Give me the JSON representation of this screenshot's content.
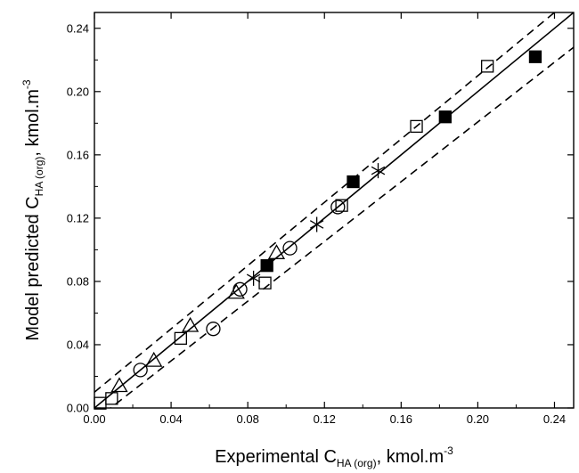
{
  "chart_data": {
    "type": "scatter",
    "title": "",
    "xlabel": {
      "main": "Experimental C",
      "sub": "HA (org)",
      "unit": ", kmol.m",
      "sup": "-3"
    },
    "ylabel": {
      "main": "Model predicted C",
      "sub": "HA (org)",
      "unit": ", kmol.m",
      "sup": "-3"
    },
    "xlim": [
      0,
      0.25
    ],
    "ylim": [
      0,
      0.25
    ],
    "xticks": [
      "0.00",
      "0.04",
      "0.08",
      "0.12",
      "0.16",
      "0.20",
      "0.24"
    ],
    "yticks": [
      "0.00",
      "0.04",
      "0.08",
      "0.12",
      "0.16",
      "0.20",
      "0.24"
    ],
    "grid": false,
    "legend": "none",
    "lines": [
      {
        "style": "solid",
        "x": [
          0.0,
          0.25
        ],
        "y": [
          0.0,
          0.25
        ]
      },
      {
        "style": "dashed",
        "x": [
          0.0,
          0.25
        ],
        "y": [
          0.01,
          0.26
        ]
      },
      {
        "style": "dashed",
        "x": [
          0.0,
          0.25
        ],
        "y": [
          -0.008,
          0.228
        ]
      }
    ],
    "series": [
      {
        "marker": "filled-square",
        "x": [
          0.09,
          0.135,
          0.183,
          0.23
        ],
        "y": [
          0.09,
          0.143,
          0.184,
          0.222
        ]
      },
      {
        "marker": "open-square",
        "x": [
          0.003,
          0.009,
          0.045,
          0.089,
          0.129,
          0.168,
          0.205
        ],
        "y": [
          0.003,
          0.006,
          0.044,
          0.079,
          0.128,
          0.178,
          0.216
        ]
      },
      {
        "marker": "open-circle",
        "x": [
          0.024,
          0.062,
          0.076,
          0.102,
          0.127
        ],
        "y": [
          0.024,
          0.05,
          0.075,
          0.101,
          0.127
        ]
      },
      {
        "marker": "open-triangle",
        "x": [
          0.013,
          0.031,
          0.05,
          0.074,
          0.095
        ],
        "y": [
          0.014,
          0.03,
          0.052,
          0.073,
          0.098
        ]
      },
      {
        "marker": "asterisk",
        "x": [
          0.083,
          0.116,
          0.148
        ],
        "y": [
          0.082,
          0.116,
          0.15
        ]
      }
    ],
    "colors": {
      "axis": "#000000",
      "marker": "#000000",
      "background": "#ffffff"
    }
  }
}
